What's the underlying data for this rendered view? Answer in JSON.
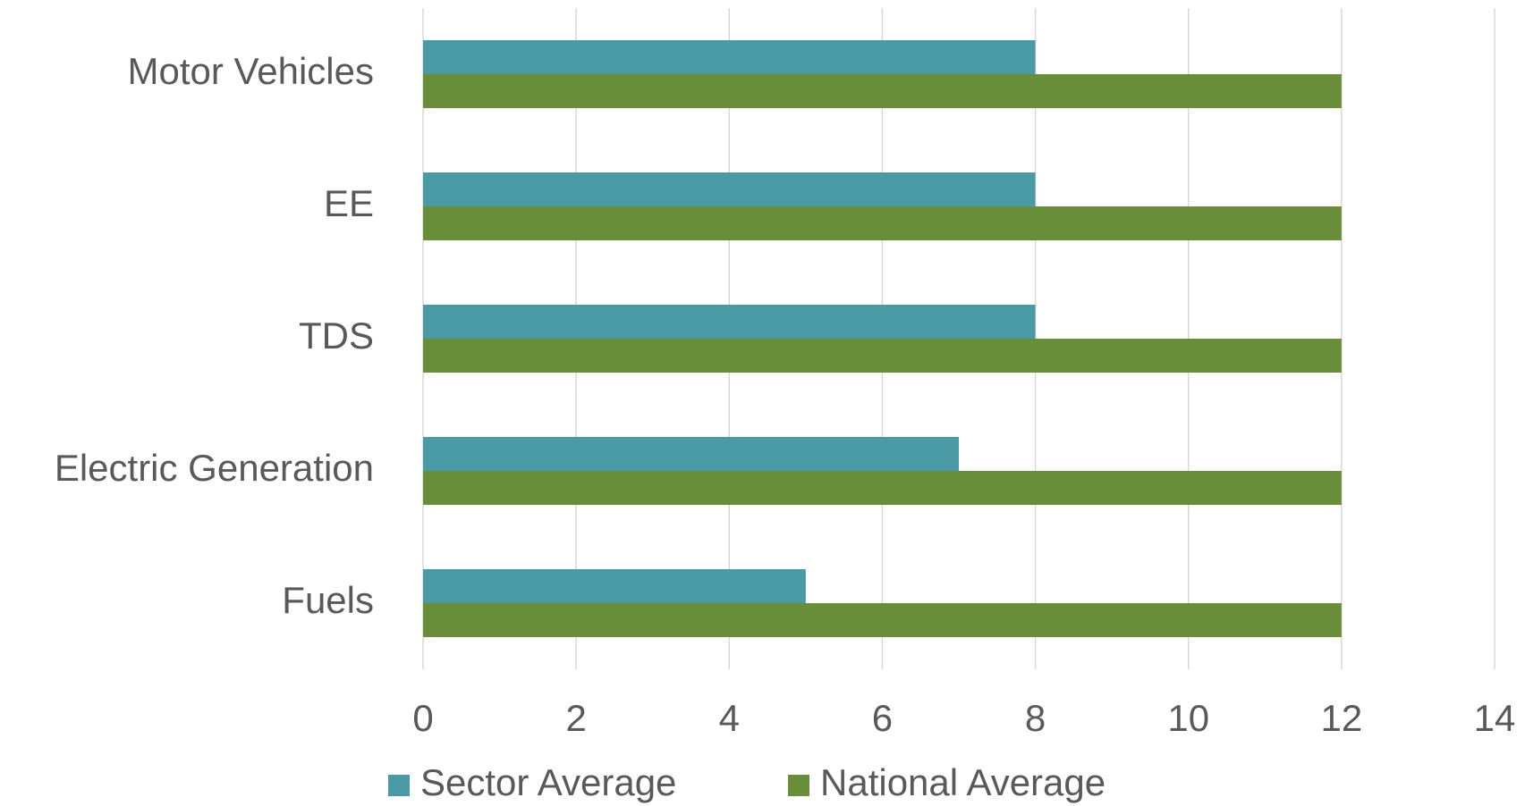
{
  "chart_data": {
    "type": "hbar",
    "categories": [
      "Motor Vehicles",
      "EE",
      "TDS",
      "Electric Generation",
      "Fuels"
    ],
    "series": [
      {
        "name": "Sector Average",
        "color": "#4a9aa5",
        "values": [
          8,
          8,
          8,
          7,
          5
        ]
      },
      {
        "name": "National Average",
        "color": "#688e3a",
        "values": [
          12,
          12,
          12,
          12,
          12
        ]
      }
    ],
    "xlim": [
      0,
      14
    ],
    "xticks": [
      0,
      2,
      4,
      6,
      8,
      10,
      12,
      14
    ],
    "grid": true,
    "legend": "bottom"
  }
}
